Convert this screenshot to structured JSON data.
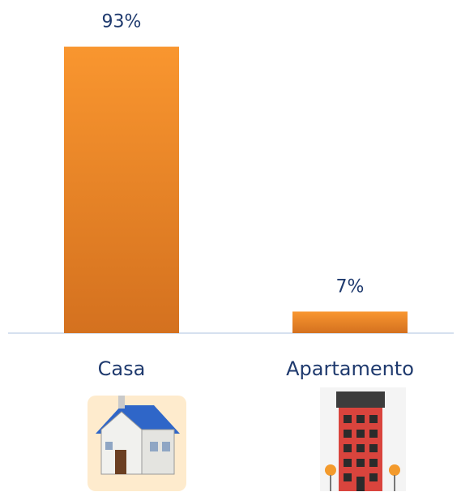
{
  "chart_data": {
    "type": "bar",
    "categories": [
      "Casa",
      "Apartamento"
    ],
    "values": [
      93,
      7
    ],
    "value_labels": [
      "93%",
      "7%"
    ],
    "color": "#f28c28"
  }
}
